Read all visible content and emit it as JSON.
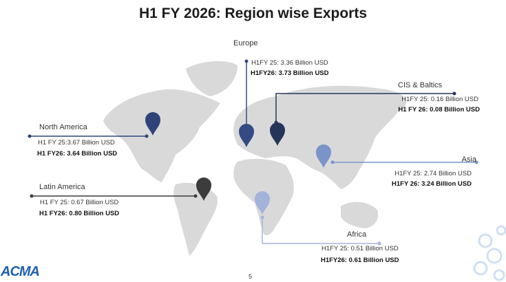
{
  "title": "H1 FY 2026: Region wise Exports",
  "regions": {
    "europe": {
      "name": "Europe",
      "h1fy25": "H1FY 25: 3.36 Billion USD",
      "h1fy26": "H1FY26: 3.73 Billion USD",
      "color": "#344a84"
    },
    "cis": {
      "name": "CIS & Baltics",
      "h1fy25": "H1FY 25: 0.16 Billion USD",
      "h1fy26": "H1 FY 26: 0.08 Billion USD",
      "color": "#253559"
    },
    "north_america": {
      "name": "North America",
      "h1fy25": "H1 FY 25:3.67 Billion USD",
      "h1fy26": "H1 FY26: 3.64 Billion USD",
      "color": "#2f4378"
    },
    "asia": {
      "name": "Asia",
      "h1fy25": "H1FY 25: 2.74 Billion USD",
      "h1fy26": "H1FY 26: 3.24 Billion USD",
      "color": "#7a93c9"
    },
    "latin_america": {
      "name": "Latin America",
      "h1fy25": "H1 FY 25: 0.67 Billion USD",
      "h1fy26": "H1 FY26: 0.80 Billion USD",
      "color": "#3c3c3c"
    },
    "africa": {
      "name": "Africa",
      "h1fy25": "H1FY 25: 0.51 Billion USD",
      "h1fy26": "H1FY26: 0.61 Billion USD",
      "color": "#a3b3da"
    }
  },
  "logo": "ACMA",
  "page_number": "5"
}
